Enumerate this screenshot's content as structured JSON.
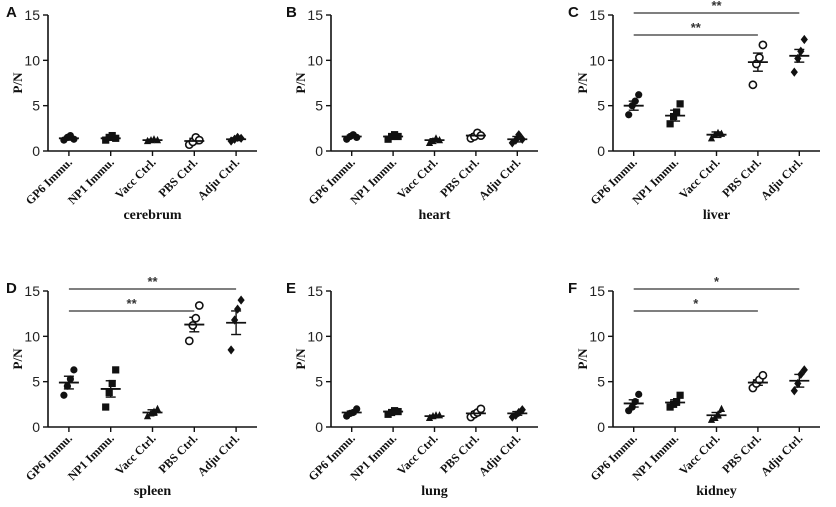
{
  "chart_data": [
    {
      "panel": "A",
      "type": "scatter",
      "title": "",
      "xlabel": "cerebrum",
      "ylabel": "P/N",
      "ylim": [
        0,
        15
      ],
      "yticks": [
        0,
        5,
        10,
        15
      ],
      "categories": [
        "GP6 Immu.",
        "NP1 Immu.",
        "Vacc Ctrl.",
        "PBS Ctrl.",
        "Adju Ctrl."
      ],
      "markers": [
        "circle-filled",
        "square-filled",
        "triangle-filled",
        "circle-open",
        "diamond-filled"
      ],
      "points": [
        [
          1.2,
          1.5,
          1.7,
          1.3
        ],
        [
          1.2,
          1.5,
          1.7,
          1.4
        ],
        [
          1.1,
          1.2,
          1.3,
          1.2
        ],
        [
          0.7,
          1.0,
          1.5,
          1.2
        ],
        [
          1.1,
          1.3,
          1.5,
          1.4
        ]
      ],
      "means": [
        1.4,
        1.4,
        1.2,
        1.1,
        1.3
      ],
      "sem": [
        0.2,
        0.2,
        0.1,
        0.3,
        0.15
      ],
      "significance": []
    },
    {
      "panel": "B",
      "type": "scatter",
      "title": "",
      "xlabel": "heart",
      "ylabel": "P/N",
      "ylim": [
        0,
        15
      ],
      "yticks": [
        0,
        5,
        10,
        15
      ],
      "categories": [
        "GP6 Immu.",
        "NP1 Immu.",
        "Vacc Ctrl.",
        "PBS Ctrl.",
        "Adju Ctrl."
      ],
      "markers": [
        "circle-filled",
        "square-filled",
        "triangle-filled",
        "circle-open",
        "diamond-filled"
      ],
      "points": [
        [
          1.3,
          1.6,
          1.8,
          1.5
        ],
        [
          1.3,
          1.6,
          1.8,
          1.6
        ],
        [
          0.9,
          1.1,
          1.4,
          1.2
        ],
        [
          1.4,
          1.6,
          2.0,
          1.7
        ],
        [
          0.9,
          1.2,
          1.8,
          1.3
        ]
      ],
      "means": [
        1.6,
        1.6,
        1.2,
        1.7,
        1.3
      ],
      "sem": [
        0.15,
        0.2,
        0.15,
        0.2,
        0.3
      ],
      "significance": []
    },
    {
      "panel": "C",
      "type": "scatter",
      "title": "",
      "xlabel": "liver",
      "ylabel": "P/N",
      "ylim": [
        0,
        15
      ],
      "yticks": [
        0,
        5,
        10,
        15
      ],
      "categories": [
        "GP6 Immu.",
        "NP1 Immu.",
        "Vacc Ctrl.",
        "PBS Ctrl.",
        "Adju Ctrl."
      ],
      "markers": [
        "circle-filled",
        "square-filled",
        "triangle-filled",
        "circle-open",
        "diamond-filled"
      ],
      "points": [
        [
          4.0,
          5.0,
          5.5,
          6.2
        ],
        [
          3.0,
          3.8,
          4.3,
          5.2
        ],
        [
          1.4,
          1.8,
          2.0,
          1.9
        ],
        [
          7.3,
          9.6,
          10.3,
          11.7
        ],
        [
          8.7,
          10.2,
          11.0,
          12.3
        ]
      ],
      "means": [
        5.0,
        3.9,
        1.8,
        9.8,
        10.5
      ],
      "sem": [
        0.5,
        0.6,
        0.3,
        1.0,
        0.7
      ],
      "significance": [
        {
          "from": 0,
          "to": 3,
          "label": "**"
        },
        {
          "from": 0,
          "to": 4,
          "label": "**"
        }
      ]
    },
    {
      "panel": "D",
      "type": "scatter",
      "title": "",
      "xlabel": "spleen",
      "ylabel": "P/N",
      "ylim": [
        0,
        15
      ],
      "yticks": [
        0,
        5,
        10,
        15
      ],
      "categories": [
        "GP6 Immu.",
        "NP1 Immu.",
        "Vacc Ctrl.",
        "PBS Ctrl.",
        "Adju Ctrl."
      ],
      "markers": [
        "circle-filled",
        "square-filled",
        "triangle-filled",
        "circle-open",
        "diamond-filled"
      ],
      "points": [
        [
          3.5,
          4.5,
          5.3,
          6.3
        ],
        [
          2.2,
          3.8,
          4.8,
          6.3
        ],
        [
          1.2,
          1.5,
          1.7,
          2.0
        ],
        [
          9.5,
          11.2,
          12.0,
          13.4
        ],
        [
          8.5,
          11.8,
          13.0,
          14.0
        ]
      ],
      "means": [
        4.9,
        4.2,
        1.6,
        11.3,
        11.5
      ],
      "sem": [
        0.7,
        0.9,
        0.3,
        0.8,
        1.3
      ],
      "significance": [
        {
          "from": 0,
          "to": 3,
          "label": "**"
        },
        {
          "from": 0,
          "to": 4,
          "label": "**"
        }
      ]
    },
    {
      "panel": "E",
      "type": "scatter",
      "title": "",
      "xlabel": "lung",
      "ylabel": "P/N",
      "ylim": [
        0,
        15
      ],
      "yticks": [
        0,
        5,
        10,
        15
      ],
      "categories": [
        "GP6 Immu.",
        "NP1 Immu.",
        "Vacc Ctrl.",
        "PBS Ctrl.",
        "Adju Ctrl."
      ],
      "markers": [
        "circle-filled",
        "square-filled",
        "triangle-filled",
        "circle-open",
        "diamond-filled"
      ],
      "points": [
        [
          1.2,
          1.5,
          1.6,
          2.0
        ],
        [
          1.4,
          1.6,
          1.8,
          1.7
        ],
        [
          1.0,
          1.2,
          1.3,
          1.3
        ],
        [
          1.1,
          1.4,
          1.6,
          2.0
        ],
        [
          1.1,
          1.3,
          1.6,
          1.9
        ]
      ],
      "means": [
        1.6,
        1.7,
        1.2,
        1.5,
        1.5
      ],
      "sem": [
        0.15,
        0.1,
        0.1,
        0.2,
        0.2
      ],
      "significance": []
    },
    {
      "panel": "F",
      "type": "scatter",
      "title": "",
      "xlabel": "kidney",
      "ylabel": "P/N",
      "ylim": [
        0,
        15
      ],
      "yticks": [
        0,
        5,
        10,
        15
      ],
      "categories": [
        "GP6 Immu.",
        "NP1 Immu.",
        "Vacc Ctrl.",
        "PBS Ctrl.",
        "Adju Ctrl."
      ],
      "markers": [
        "circle-filled",
        "square-filled",
        "triangle-filled",
        "circle-open",
        "diamond-filled"
      ],
      "points": [
        [
          1.8,
          2.2,
          2.8,
          3.6
        ],
        [
          2.2,
          2.5,
          2.8,
          3.5
        ],
        [
          0.8,
          1.0,
          1.4,
          2.0
        ],
        [
          4.3,
          4.8,
          5.2,
          5.7
        ],
        [
          4.0,
          4.8,
          5.8,
          6.3
        ]
      ],
      "means": [
        2.6,
        2.7,
        1.3,
        4.9,
        5.1
      ],
      "sem": [
        0.4,
        0.3,
        0.3,
        0.3,
        0.7
      ],
      "significance": [
        {
          "from": 0,
          "to": 3,
          "label": "*"
        },
        {
          "from": 0,
          "to": 4,
          "label": "*"
        }
      ]
    }
  ]
}
